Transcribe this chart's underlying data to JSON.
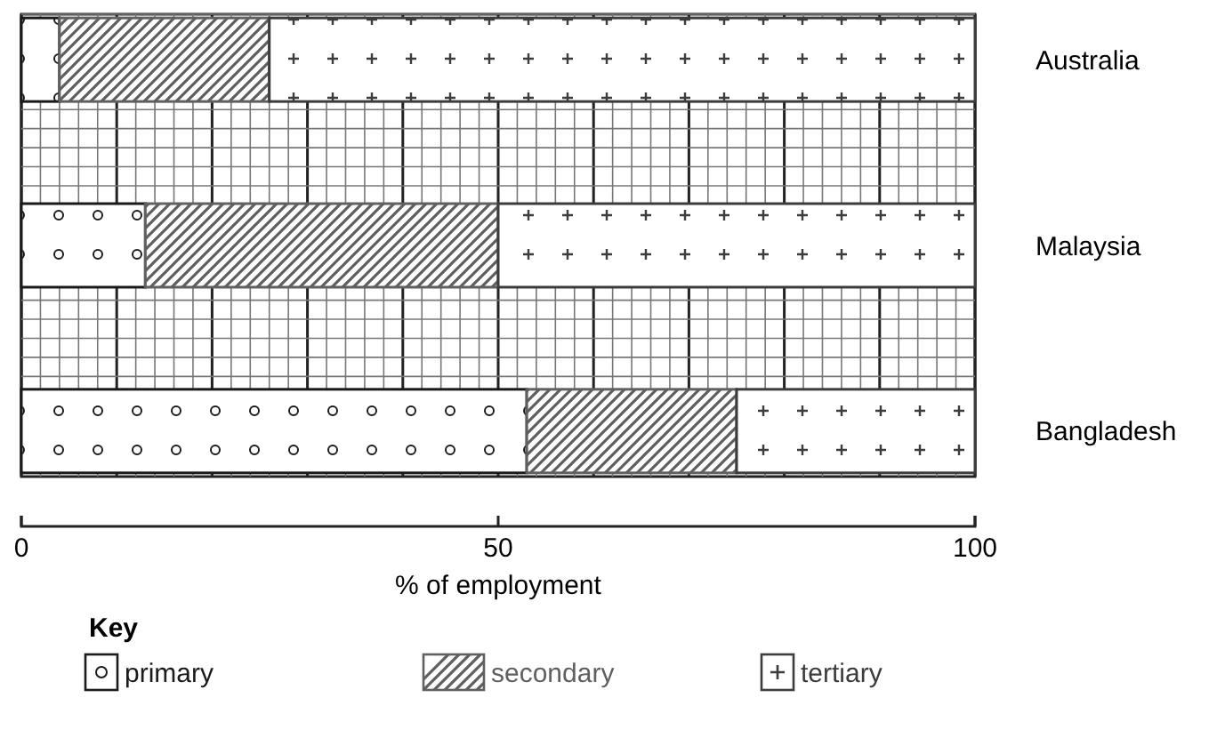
{
  "chart_data": {
    "type": "bar",
    "orientation": "horizontal",
    "stacked": true,
    "categories": [
      "Australia",
      "Malaysia",
      "Bangladesh"
    ],
    "series": [
      {
        "name": "primary",
        "color": "#1a1a1a",
        "values": [
          4,
          13,
          53
        ]
      },
      {
        "name": "secondary",
        "color": "#606060",
        "values": [
          22,
          37,
          22
        ]
      },
      {
        "name": "tertiary",
        "color": "#3c3c3c",
        "values": [
          74,
          50,
          25
        ]
      }
    ],
    "xlim": [
      0,
      100
    ],
    "xticks": [
      0,
      50,
      100
    ],
    "xlabel": "% of employment",
    "grid": true,
    "legend": "bottom",
    "legend_title": "Key"
  }
}
